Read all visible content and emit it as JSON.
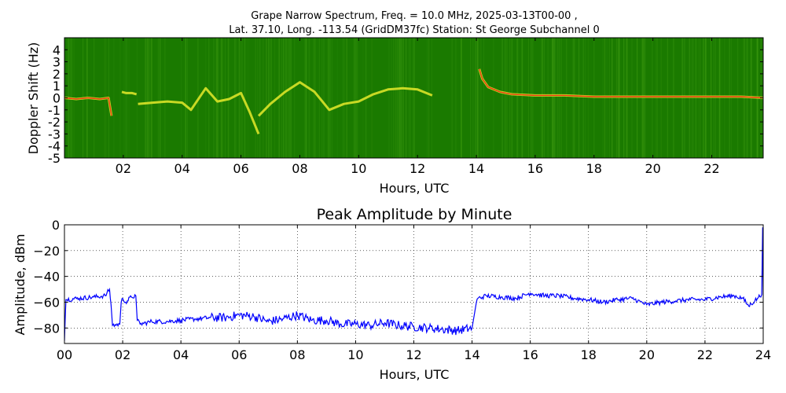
{
  "figure": {
    "title_line1": "Grape Narrow Spectrum, Freq. = 10.0 MHz, 2025-03-13T00-00 ,",
    "title_line2": "Lat.  37.10, Long. -113.54 (GridDM37fc) Station: St George Subchannel 0"
  },
  "chart_data": [
    {
      "type": "heatmap",
      "title": "",
      "xlabel": "Hours, UTC",
      "ylabel": "Doppler Shift (Hz)",
      "xlim": [
        0,
        23.75
      ],
      "ylim": [
        -5,
        5
      ],
      "xticks": [
        2,
        4,
        6,
        8,
        10,
        12,
        14,
        16,
        18,
        20,
        22
      ],
      "xtick_labels": [
        "02",
        "04",
        "06",
        "08",
        "10",
        "12",
        "14",
        "16",
        "18",
        "20",
        "22"
      ],
      "yticks": [
        4,
        3,
        2,
        1,
        0,
        -1,
        -2,
        -3,
        -4,
        -5
      ],
      "ytick_labels": [
        "4",
        "3",
        "2",
        "1",
        "0",
        "-1",
        "-2",
        "-3",
        "-4",
        "-5"
      ],
      "colors": {
        "background": "#1a7a00",
        "noise": "#3d9a10",
        "signal": "#e6ea2a",
        "peak": "#e83a12"
      },
      "traces": [
        {
          "x": [
            0,
            0.4,
            0.8,
            1.2,
            1.5,
            1.6
          ],
          "y": [
            0,
            -0.1,
            0,
            -0.1,
            0,
            -1.5
          ]
        },
        {
          "x": [
            1.95,
            2.1,
            2.3,
            2.45
          ],
          "y": [
            0.5,
            0.4,
            0.4,
            0.3
          ]
        },
        {
          "x": [
            2.5,
            3.0,
            3.5,
            4.0,
            4.3,
            4.8,
            5.2,
            5.6,
            6.0,
            6.3,
            6.6
          ],
          "y": [
            -0.5,
            -0.4,
            -0.3,
            -0.4,
            -1.0,
            0.8,
            -0.3,
            -0.1,
            0.4,
            -1.2,
            -3.0
          ]
        },
        {
          "x": [
            6.6,
            7.0,
            7.5,
            8.0,
            8.5,
            9.0,
            9.5,
            10.0,
            10.5,
            11.0,
            11.5,
            12.0,
            12.5
          ],
          "y": [
            -1.5,
            -0.5,
            0.5,
            1.3,
            0.5,
            -1.0,
            -0.5,
            -0.3,
            0.3,
            0.7,
            0.8,
            0.7,
            0.2
          ]
        },
        {
          "x": [
            14.1,
            14.2,
            14.4,
            14.8,
            15.2,
            16,
            17,
            18,
            19,
            20,
            21,
            22,
            23,
            23.75
          ],
          "y": [
            2.4,
            1.6,
            0.9,
            0.5,
            0.3,
            0.2,
            0.2,
            0.1,
            0.1,
            0.1,
            0.1,
            0.1,
            0.1,
            0
          ]
        }
      ]
    },
    {
      "type": "line",
      "title": "Peak Amplitude by Minute",
      "xlabel": "Hours, UTC",
      "ylabel": "Amplitude, dBm",
      "xlim": [
        0,
        24
      ],
      "ylim": [
        -92,
        0
      ],
      "xticks": [
        0,
        2,
        4,
        6,
        8,
        10,
        12,
        14,
        16,
        18,
        20,
        22,
        24
      ],
      "xtick_labels": [
        "00",
        "02",
        "04",
        "06",
        "08",
        "10",
        "12",
        "14",
        "16",
        "18",
        "20",
        "22",
        "24"
      ],
      "yticks": [
        0,
        -20,
        -40,
        -60,
        -80
      ],
      "ytick_labels": [
        "0",
        "−20",
        "−40",
        "−60",
        "−80"
      ],
      "grid": true,
      "series": [
        {
          "color": "#0000ff",
          "x": [
            0,
            0.05,
            0.5,
            1.0,
            1.4,
            1.55,
            1.6,
            1.65,
            1.9,
            1.95,
            2.0,
            2.1,
            2.3,
            2.45,
            2.5,
            2.6,
            3.0,
            3.5,
            4.0,
            4.5,
            5.0,
            5.5,
            6.0,
            6.5,
            7.0,
            7.5,
            8.0,
            8.5,
            9.0,
            9.5,
            10.0,
            10.5,
            11.0,
            11.5,
            12.0,
            12.5,
            13.0,
            13.5,
            14.0,
            14.15,
            14.2,
            14.5,
            15.0,
            15.5,
            16.0,
            16.5,
            17.0,
            17.5,
            18.0,
            18.5,
            19.0,
            19.5,
            20.0,
            20.5,
            21.0,
            21.5,
            22.0,
            22.5,
            23.0,
            23.3,
            23.5,
            23.8,
            23.95,
            23.98,
            24.0
          ],
          "y": [
            -90,
            -58,
            -57,
            -56,
            -55,
            -50,
            -62,
            -78,
            -77,
            -60,
            -57,
            -60,
            -56,
            -55,
            -74,
            -77,
            -75,
            -75,
            -74,
            -73,
            -72,
            -72,
            -70,
            -71,
            -75,
            -73,
            -70,
            -74,
            -74,
            -77,
            -77,
            -78,
            -76,
            -78,
            -79,
            -80,
            -81,
            -82,
            -80,
            -60,
            -57,
            -55,
            -56,
            -57,
            -53,
            -55,
            -55,
            -57,
            -58,
            -60,
            -58,
            -57,
            -62,
            -60,
            -59,
            -58,
            -58,
            -56,
            -55,
            -57,
            -63,
            -57,
            -54,
            -2,
            -55
          ]
        }
      ]
    }
  ]
}
